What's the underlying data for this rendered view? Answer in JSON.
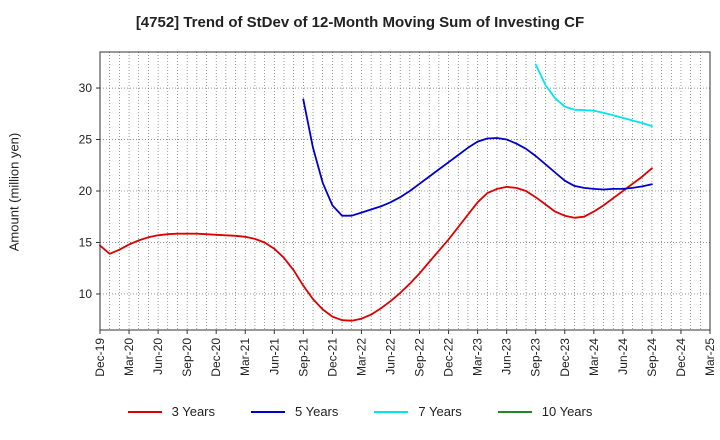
{
  "chart_data": {
    "type": "line",
    "title": "[4752]  Trend of StDev of 12-Month Moving Sum of Investing CF",
    "xlabel": "",
    "ylabel": "Amount (million yen)",
    "x_ticks": [
      "Dec-19",
      "Mar-20",
      "Jun-20",
      "Sep-20",
      "Dec-20",
      "Mar-21",
      "Jun-21",
      "Sep-21",
      "Dec-21",
      "Mar-22",
      "Jun-22",
      "Sep-22",
      "Dec-22",
      "Mar-23",
      "Jun-23",
      "Sep-23",
      "Dec-23",
      "Mar-24",
      "Jun-24",
      "Sep-24",
      "Dec-24",
      "Mar-25"
    ],
    "y_ticks": [
      10,
      15,
      20,
      25,
      30
    ],
    "ylim": [
      6.5,
      33.5
    ],
    "grid": true,
    "legend_position": "bottom",
    "series": [
      {
        "name": "3 Years",
        "color": "#dd0000",
        "points": [
          [
            "Dec-19",
            14.7
          ],
          [
            "Jan-20",
            13.9
          ],
          [
            "Feb-20",
            14.3
          ],
          [
            "Mar-20",
            14.8
          ],
          [
            "Apr-20",
            15.2
          ],
          [
            "May-20",
            15.5
          ],
          [
            "Jun-20",
            15.7
          ],
          [
            "Jul-20",
            15.8
          ],
          [
            "Aug-20",
            15.85
          ],
          [
            "Sep-20",
            15.85
          ],
          [
            "Oct-20",
            15.85
          ],
          [
            "Nov-20",
            15.8
          ],
          [
            "Dec-20",
            15.75
          ],
          [
            "Jan-21",
            15.7
          ],
          [
            "Feb-21",
            15.65
          ],
          [
            "Mar-21",
            15.55
          ],
          [
            "Apr-21",
            15.35
          ],
          [
            "May-21",
            15.0
          ],
          [
            "Jun-21",
            14.4
          ],
          [
            "Jul-21",
            13.5
          ],
          [
            "Aug-21",
            12.3
          ],
          [
            "Sep-21",
            10.8
          ],
          [
            "Oct-21",
            9.5
          ],
          [
            "Nov-21",
            8.5
          ],
          [
            "Dec-21",
            7.8
          ],
          [
            "Jan-22",
            7.45
          ],
          [
            "Feb-22",
            7.4
          ],
          [
            "Mar-22",
            7.6
          ],
          [
            "Apr-22",
            8.0
          ],
          [
            "May-22",
            8.6
          ],
          [
            "Jun-22",
            9.3
          ],
          [
            "Jul-22",
            10.1
          ],
          [
            "Aug-22",
            11.0
          ],
          [
            "Sep-22",
            12.0
          ],
          [
            "Oct-22",
            13.1
          ],
          [
            "Nov-22",
            14.2
          ],
          [
            "Dec-22",
            15.3
          ],
          [
            "Jan-23",
            16.5
          ],
          [
            "Feb-23",
            17.7
          ],
          [
            "Mar-23",
            18.9
          ],
          [
            "Apr-23",
            19.8
          ],
          [
            "May-23",
            20.2
          ],
          [
            "Jun-23",
            20.4
          ],
          [
            "Jul-23",
            20.3
          ],
          [
            "Aug-23",
            20.0
          ],
          [
            "Sep-23",
            19.4
          ],
          [
            "Oct-23",
            18.7
          ],
          [
            "Nov-23",
            18.0
          ],
          [
            "Dec-23",
            17.6
          ],
          [
            "Jan-24",
            17.4
          ],
          [
            "Feb-24",
            17.5
          ],
          [
            "Mar-24",
            18.0
          ],
          [
            "Apr-24",
            18.6
          ],
          [
            "May-24",
            19.3
          ],
          [
            "Jun-24",
            20.0
          ],
          [
            "Jul-24",
            20.7
          ],
          [
            "Aug-24",
            21.4
          ],
          [
            "Sep-24",
            22.2
          ]
        ]
      },
      {
        "name": "5 Years",
        "color": "#0000cc",
        "points": [
          [
            "Sep-21",
            28.9
          ],
          [
            "Oct-21",
            24.2
          ],
          [
            "Nov-21",
            20.8
          ],
          [
            "Dec-21",
            18.6
          ],
          [
            "Jan-22",
            17.6
          ],
          [
            "Feb-22",
            17.6
          ],
          [
            "Mar-22",
            17.9
          ],
          [
            "Apr-22",
            18.2
          ],
          [
            "May-22",
            18.5
          ],
          [
            "Jun-22",
            18.9
          ],
          [
            "Jul-22",
            19.4
          ],
          [
            "Aug-22",
            20.0
          ],
          [
            "Sep-22",
            20.7
          ],
          [
            "Oct-22",
            21.4
          ],
          [
            "Nov-22",
            22.1
          ],
          [
            "Dec-22",
            22.8
          ],
          [
            "Jan-23",
            23.5
          ],
          [
            "Feb-23",
            24.2
          ],
          [
            "Mar-23",
            24.8
          ],
          [
            "Apr-23",
            25.1
          ],
          [
            "May-23",
            25.15
          ],
          [
            "Jun-23",
            25.0
          ],
          [
            "Jul-23",
            24.6
          ],
          [
            "Aug-23",
            24.1
          ],
          [
            "Sep-23",
            23.4
          ],
          [
            "Oct-23",
            22.6
          ],
          [
            "Nov-23",
            21.8
          ],
          [
            "Dec-23",
            21.0
          ],
          [
            "Jan-24",
            20.5
          ],
          [
            "Feb-24",
            20.3
          ],
          [
            "Mar-24",
            20.2
          ],
          [
            "Apr-24",
            20.15
          ],
          [
            "May-24",
            20.2
          ],
          [
            "Jun-24",
            20.2
          ],
          [
            "Jul-24",
            20.3
          ],
          [
            "Aug-24",
            20.45
          ],
          [
            "Sep-24",
            20.65
          ]
        ]
      },
      {
        "name": "7 Years",
        "color": "#00e5ee",
        "points": [
          [
            "Sep-23",
            32.3
          ],
          [
            "Oct-23",
            30.3
          ],
          [
            "Nov-23",
            29.0
          ],
          [
            "Dec-23",
            28.2
          ],
          [
            "Jan-24",
            27.9
          ],
          [
            "Feb-24",
            27.85
          ],
          [
            "Mar-24",
            27.8
          ],
          [
            "Apr-24",
            27.6
          ],
          [
            "May-24",
            27.35
          ],
          [
            "Jun-24",
            27.1
          ],
          [
            "Jul-24",
            26.85
          ],
          [
            "Aug-24",
            26.6
          ],
          [
            "Sep-24",
            26.3
          ]
        ]
      },
      {
        "name": "10 Years",
        "color": "#228822",
        "points": []
      }
    ]
  }
}
